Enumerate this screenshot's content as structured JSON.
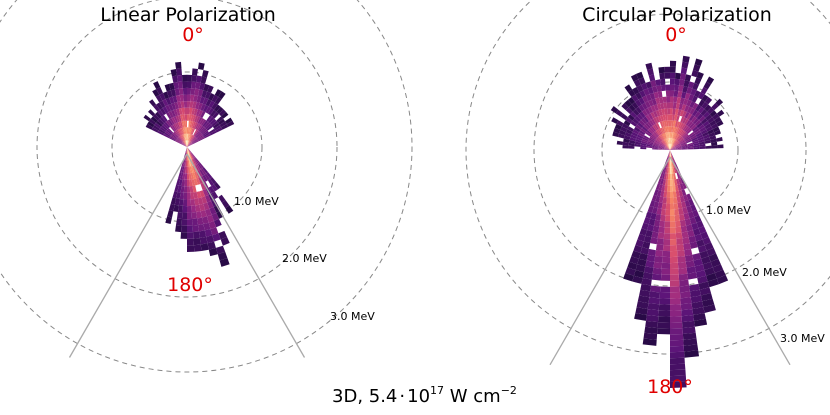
{
  "caption": {
    "prefix": "3D, 5.4",
    "dot": "·",
    "base": "10",
    "exponent": "17",
    "unit": " W cm",
    "unit_exponent": "−2"
  },
  "chart_data": [
    {
      "type": "polar-histogram",
      "title": "Linear Polarization",
      "top_label": "0°",
      "bottom_label": "180°",
      "radial_unit": "MeV",
      "ring_labels": [
        "1.0 MeV",
        "2.0 MeV",
        "3.0 MeV"
      ],
      "ring_values": [
        1.0,
        2.0,
        3.0
      ],
      "colormap": "magma",
      "grid": true,
      "lobes": [
        {
          "name": "forward-lobe",
          "angle_deg": 0,
          "max_energy_MeV": 1.0,
          "half_width_deg": 40
        },
        {
          "name": "backward-lobe",
          "angle_deg": 180,
          "max_energy_MeV": 1.5,
          "half_width_deg": 18,
          "skew_deg": -12
        }
      ]
    },
    {
      "type": "polar-histogram",
      "title": "Circular Polarization",
      "top_label": "0°",
      "bottom_label": "180°",
      "radial_unit": "MeV",
      "ring_labels": [
        "1.0 MeV",
        "2.0 MeV",
        "3.0 MeV"
      ],
      "ring_values": [
        1.0,
        2.0,
        3.0
      ],
      "colormap": "magma",
      "grid": true,
      "lobes": [
        {
          "name": "forward-lobe",
          "angle_deg": 0,
          "max_energy_MeV": 1.3,
          "half_width_deg": 55
        },
        {
          "name": "backward-lobe",
          "angle_deg": 180,
          "max_energy_MeV": 3.3,
          "half_width_deg": 14,
          "skew_deg": -3
        }
      ]
    }
  ],
  "colors": {
    "angle_label": "#e00000",
    "grid": "#888888",
    "cone": "#aaaaaa"
  }
}
